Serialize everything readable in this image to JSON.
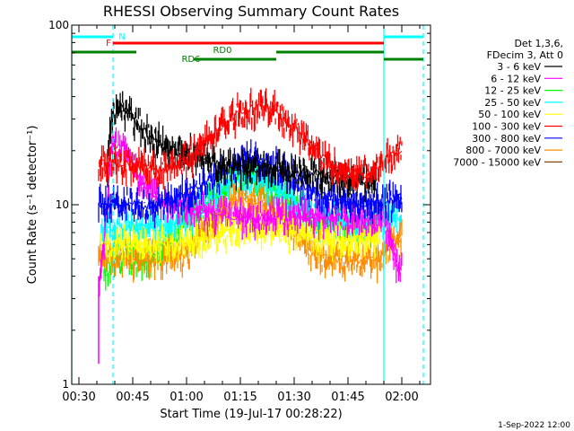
{
  "chart_data": {
    "type": "line",
    "title": "RHESSI Observing Summary Count Rates",
    "xlabel": "Start Time (19-Jul-17 00:28:22)",
    "ylabel": "Count Rate (s⁻¹ detector⁻¹)",
    "y_scale": "log",
    "ylim": [
      1,
      100
    ],
    "xlim_minutes": [
      28,
      128
    ],
    "x_ticks": [
      "00:30",
      "00:45",
      "01:00",
      "01:15",
      "01:30",
      "01:45",
      "02:00"
    ],
    "y_ticks": [
      "1",
      "10",
      "100"
    ],
    "legend_header": [
      "Det 1,3,6,",
      "FDecim 3, Att 0"
    ],
    "legend_placement": "right",
    "series": [
      {
        "name": "3 - 6 keV",
        "color": "#000000",
        "x": [
          38,
          39,
          42,
          46,
          50,
          55,
          62,
          68,
          73,
          78,
          84,
          90,
          96,
          102,
          108,
          113
        ],
        "values": [
          17,
          31,
          35,
          29,
          24,
          20,
          19,
          17,
          16,
          16,
          16,
          15,
          15,
          14,
          14,
          13.5
        ]
      },
      {
        "name": "6 - 12 keV",
        "color": "#ff00ff",
        "x": [
          35.5,
          37,
          39,
          41,
          44,
          47,
          50,
          55,
          60,
          65,
          70,
          75,
          80,
          85,
          90,
          95,
          100,
          105,
          110,
          115,
          118,
          120
        ],
        "values": [
          3.5,
          6,
          20,
          22,
          19,
          14,
          11.5,
          10,
          9.5,
          9,
          9,
          8.5,
          8.5,
          8.5,
          8.5,
          8.5,
          8.5,
          8.5,
          8.5,
          8.5,
          5,
          4.5
        ]
      },
      {
        "name": "12 - 25 keV",
        "color": "#00ff00",
        "x": [
          37,
          40,
          45,
          50,
          55,
          60,
          65,
          70,
          75,
          80,
          85,
          90,
          95,
          100,
          105,
          110,
          113
        ],
        "values": [
          4,
          5,
          5,
          5,
          6,
          8,
          10,
          12,
          14.5,
          14,
          12,
          10,
          8.5,
          8,
          7.5,
          7.5,
          7.5
        ]
      },
      {
        "name": "25 - 50 keV",
        "color": "#00ffff",
        "x": [
          36,
          40,
          45,
          50,
          55,
          60,
          65,
          70,
          75,
          80,
          85,
          90,
          95,
          100,
          105,
          110,
          114,
          117,
          120
        ],
        "values": [
          7,
          7.5,
          7.5,
          7.5,
          7.5,
          8.5,
          10,
          12,
          14,
          14,
          12,
          10,
          9,
          8.5,
          8,
          8,
          8,
          8.5,
          8.5
        ]
      },
      {
        "name": "50 - 100 keV",
        "color": "#ffff00",
        "x": [
          36,
          45,
          55,
          65,
          70,
          75,
          80,
          85,
          90,
          95,
          100,
          105,
          110,
          114
        ],
        "values": [
          6,
          6,
          6,
          6.5,
          7,
          7.5,
          7.5,
          7.5,
          7,
          6.5,
          6.5,
          6.5,
          6.5,
          6.5
        ]
      },
      {
        "name": "100 - 300 keV",
        "color": "#ff0000",
        "x": [
          35.5,
          40,
          45,
          50,
          55,
          60,
          65,
          70,
          75,
          80,
          85,
          90,
          95,
          100,
          105,
          110,
          113,
          116,
          120
        ],
        "values": [
          17,
          17,
          17,
          16,
          16,
          18,
          22,
          28,
          33,
          35,
          33,
          27,
          21,
          17,
          15,
          15,
          16,
          18,
          21
        ]
      },
      {
        "name": "300 - 800 keV",
        "color": "#0000ff",
        "x": [
          35.5,
          40,
          45,
          50,
          55,
          60,
          65,
          70,
          75,
          80,
          85,
          90,
          95,
          100,
          105,
          110,
          113,
          116,
          120
        ],
        "values": [
          10,
          10,
          10,
          10,
          10.5,
          11.5,
          13,
          15.5,
          17.5,
          18,
          16,
          14,
          12,
          11,
          10.5,
          10,
          10,
          10.5,
          11
        ]
      },
      {
        "name": "800 - 7000 keV",
        "color": "#ff8c00",
        "x": [
          35.5,
          40,
          45,
          50,
          55,
          60,
          65,
          70,
          75,
          80,
          85,
          90,
          95,
          100,
          105,
          110,
          114,
          117,
          120
        ],
        "values": [
          5,
          5,
          5,
          5,
          5,
          5.5,
          7,
          9,
          11,
          10.5,
          9,
          7,
          5.5,
          5,
          5,
          5,
          5,
          6,
          6.5
        ]
      },
      {
        "name": "7000 - 15000 keV",
        "color": "#8b4513",
        "x": [],
        "values": []
      }
    ],
    "flag_bars": [
      {
        "label": "N",
        "label_color": "#00ffff",
        "color": "#00ffff",
        "segments": [
          [
            28,
            39.5
          ],
          [
            115,
            126
          ]
        ]
      },
      {
        "label": "F",
        "label_color": "#ff0000",
        "color": "#ff0000",
        "segments": [
          [
            39.5,
            115
          ]
        ]
      },
      {
        "label": "RD0",
        "label_color": "#008000",
        "color": "#008000",
        "segments": [
          [
            28,
            46
          ],
          [
            85,
            115
          ]
        ]
      },
      {
        "label": "RD6",
        "label_color": "#008000",
        "color": "#008000",
        "segments": [
          [
            62,
            85
          ],
          [
            115,
            126
          ]
        ]
      }
    ],
    "vertical_markers": [
      {
        "x": 39.5,
        "style": "dashed",
        "color": "#00ffff"
      },
      {
        "x": 115,
        "style": "solid",
        "color": "#00ffff"
      },
      {
        "x": 126,
        "style": "dashed",
        "color": "#00ffff"
      },
      {
        "x": 28,
        "style": "solid",
        "color": "#00ffff"
      }
    ]
  },
  "footer_date": "1-Sep-2022 12:00"
}
